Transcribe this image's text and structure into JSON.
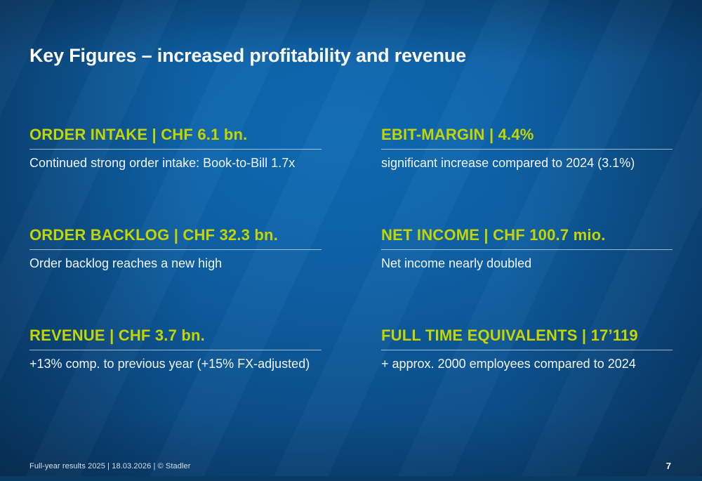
{
  "slide": {
    "title": "Key Figures – increased profitability and revenue",
    "footer": "Full-year results 2025 | 18.03.2026 | © Stadler",
    "page_number": "7"
  },
  "colors": {
    "accent_yellow_green": "#c4d600",
    "body_text": "#eef4f9",
    "background_center": "#0f6ab4",
    "background_edge": "#08284a",
    "divider": "rgba(255,255,255,0.6)"
  },
  "sections": [
    {
      "heading": "ORDER INTAKE | CHF 6.1 bn.",
      "body": "Continued strong order intake: Book-to-Bill 1.7x"
    },
    {
      "heading": "EBIT-MARGIN | 4.4%",
      "body": "significant increase compared to 2024 (3.1%)"
    },
    {
      "heading": "ORDER BACKLOG | CHF 32.3 bn.",
      "body": "Order backlog reaches a new high"
    },
    {
      "heading": "NET INCOME | CHF 100.7 mio.",
      "body": "Net income nearly doubled"
    },
    {
      "heading": "REVENUE | CHF 3.7 bn.",
      "body": "+13% comp. to previous year (+15% FX-adjusted)"
    },
    {
      "heading": "FULL TIME EQUIVALENTS | 17’119",
      "body": "+ approx. 2000 employees compared to 2024"
    }
  ]
}
